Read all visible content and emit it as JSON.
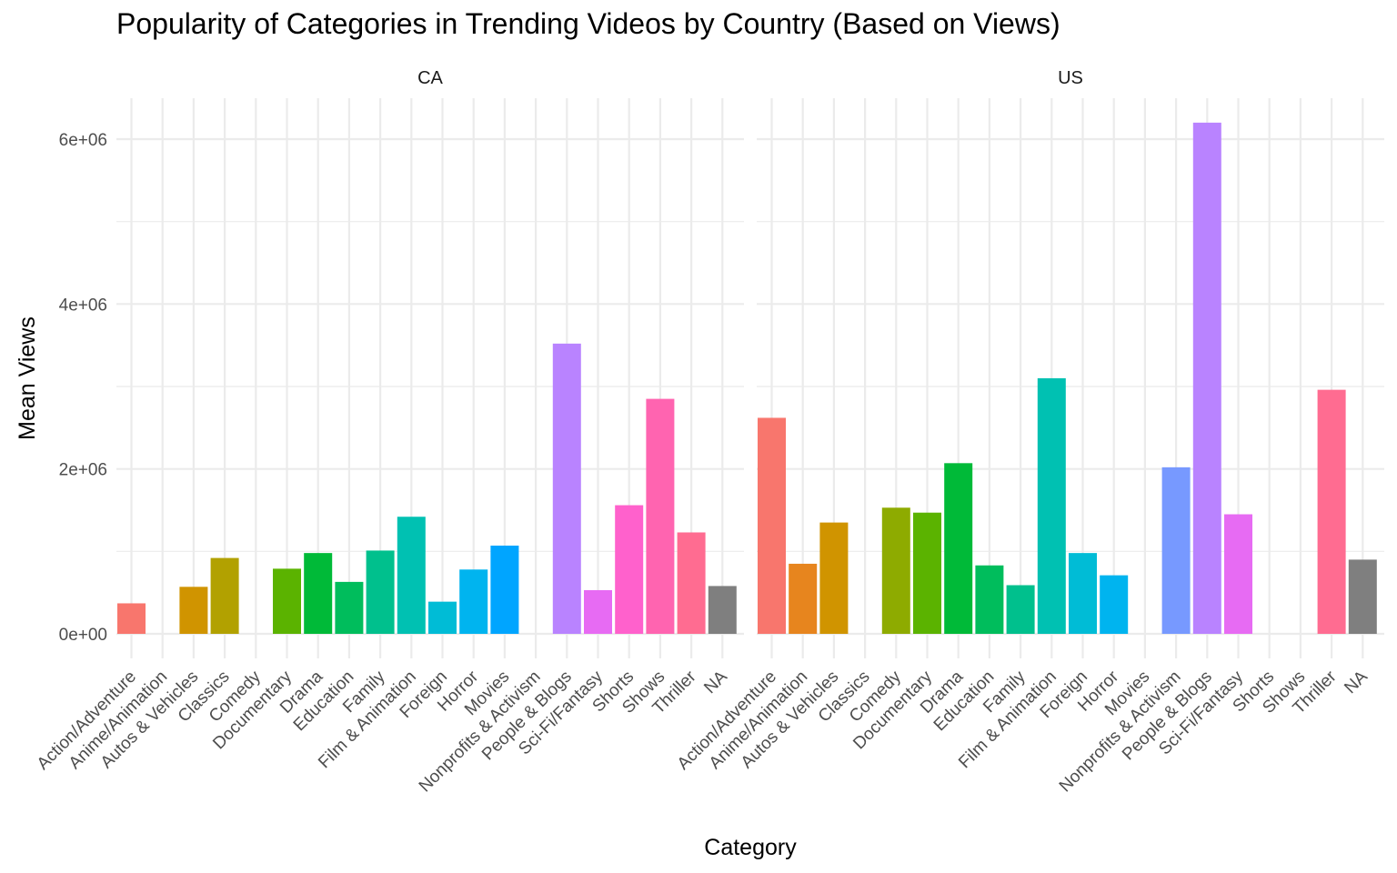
{
  "chart_data": {
    "type": "bar",
    "title": "Popularity of Categories in Trending Videos by Country (Based on Views)",
    "xlabel": "Category",
    "ylabel": "Mean Views",
    "ylim": [
      0,
      6500000
    ],
    "y_ticks": [
      0,
      2000000,
      4000000,
      6000000
    ],
    "y_tick_labels": [
      "0e+00",
      "2e+06",
      "4e+06",
      "6e+06"
    ],
    "grid": true,
    "legend": "none",
    "categories": [
      "Action/Adventure",
      "Anime/Animation",
      "Autos & Vehicles",
      "Classics",
      "Comedy",
      "Documentary",
      "Drama",
      "Education",
      "Family",
      "Film & Animation",
      "Foreign",
      "Horror",
      "Movies",
      "Nonprofits & Activism",
      "People & Blogs",
      "Sci-Fi/Fantasy",
      "Shorts",
      "Shows",
      "Thriller",
      "NA"
    ],
    "colors": [
      "#F8766D",
      "#E7851E",
      "#D09400",
      "#B2A100",
      "#8EAB00",
      "#5BB300",
      "#00BA38",
      "#00BD5C",
      "#00C08D",
      "#00C1B2",
      "#00BCD6",
      "#00B4EF",
      "#00A5FF",
      "#7799FF",
      "#B983FF",
      "#E76BF3",
      "#FF61CC",
      "#FF64B0",
      "#FF6C91",
      "#7F7F7F"
    ],
    "panels": [
      {
        "name": "CA",
        "values": [
          370000,
          null,
          570000,
          920000,
          null,
          790000,
          980000,
          630000,
          1010000,
          1420000,
          390000,
          780000,
          1070000,
          null,
          3520000,
          530000,
          1560000,
          2850000,
          1230000,
          580000
        ]
      },
      {
        "name": "US",
        "values": [
          2620000,
          850000,
          1350000,
          null,
          1530000,
          1470000,
          2070000,
          830000,
          590000,
          3100000,
          980000,
          710000,
          null,
          2020000,
          6200000,
          1450000,
          null,
          null,
          2960000,
          900000
        ]
      }
    ]
  }
}
